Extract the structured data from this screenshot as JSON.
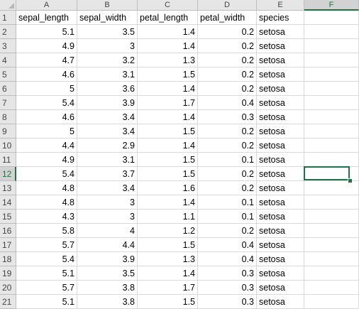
{
  "columns": [
    "A",
    "B",
    "C",
    "D",
    "E",
    "F"
  ],
  "selected_column": "F",
  "selected_row": "12",
  "rows": [
    {
      "n": "1",
      "cells": [
        "sepal_length",
        "sepal_width",
        "petal_length",
        "petal_width",
        "species",
        ""
      ]
    },
    {
      "n": "2",
      "cells": [
        "5.1",
        "3.5",
        "1.4",
        "0.2",
        "setosa",
        ""
      ]
    },
    {
      "n": "3",
      "cells": [
        "4.9",
        "3",
        "1.4",
        "0.2",
        "setosa",
        ""
      ]
    },
    {
      "n": "4",
      "cells": [
        "4.7",
        "3.2",
        "1.3",
        "0.2",
        "setosa",
        ""
      ]
    },
    {
      "n": "5",
      "cells": [
        "4.6",
        "3.1",
        "1.5",
        "0.2",
        "setosa",
        ""
      ]
    },
    {
      "n": "6",
      "cells": [
        "5",
        "3.6",
        "1.4",
        "0.2",
        "setosa",
        ""
      ]
    },
    {
      "n": "7",
      "cells": [
        "5.4",
        "3.9",
        "1.7",
        "0.4",
        "setosa",
        ""
      ]
    },
    {
      "n": "8",
      "cells": [
        "4.6",
        "3.4",
        "1.4",
        "0.3",
        "setosa",
        ""
      ]
    },
    {
      "n": "9",
      "cells": [
        "5",
        "3.4",
        "1.5",
        "0.2",
        "setosa",
        ""
      ]
    },
    {
      "n": "10",
      "cells": [
        "4.4",
        "2.9",
        "1.4",
        "0.2",
        "setosa",
        ""
      ]
    },
    {
      "n": "11",
      "cells": [
        "4.9",
        "3.1",
        "1.5",
        "0.1",
        "setosa",
        ""
      ]
    },
    {
      "n": "12",
      "cells": [
        "5.4",
        "3.7",
        "1.5",
        "0.2",
        "setosa",
        ""
      ]
    },
    {
      "n": "13",
      "cells": [
        "4.8",
        "3.4",
        "1.6",
        "0.2",
        "setosa",
        ""
      ]
    },
    {
      "n": "14",
      "cells": [
        "4.8",
        "3",
        "1.4",
        "0.1",
        "setosa",
        ""
      ]
    },
    {
      "n": "15",
      "cells": [
        "4.3",
        "3",
        "1.1",
        "0.1",
        "setosa",
        ""
      ]
    },
    {
      "n": "16",
      "cells": [
        "5.8",
        "4",
        "1.2",
        "0.2",
        "setosa",
        ""
      ]
    },
    {
      "n": "17",
      "cells": [
        "5.7",
        "4.4",
        "1.5",
        "0.4",
        "setosa",
        ""
      ]
    },
    {
      "n": "18",
      "cells": [
        "5.4",
        "3.9",
        "1.3",
        "0.4",
        "setosa",
        ""
      ]
    },
    {
      "n": "19",
      "cells": [
        "5.1",
        "3.5",
        "1.4",
        "0.3",
        "setosa",
        ""
      ]
    },
    {
      "n": "20",
      "cells": [
        "5.7",
        "3.8",
        "1.7",
        "0.3",
        "setosa",
        ""
      ]
    },
    {
      "n": "21",
      "cells": [
        "5.1",
        "3.8",
        "1.5",
        "0.3",
        "setosa",
        ""
      ]
    }
  ],
  "colors": {
    "accent": "#217346",
    "header_bg": "#e6e6e6",
    "gridline": "#dadada"
  }
}
